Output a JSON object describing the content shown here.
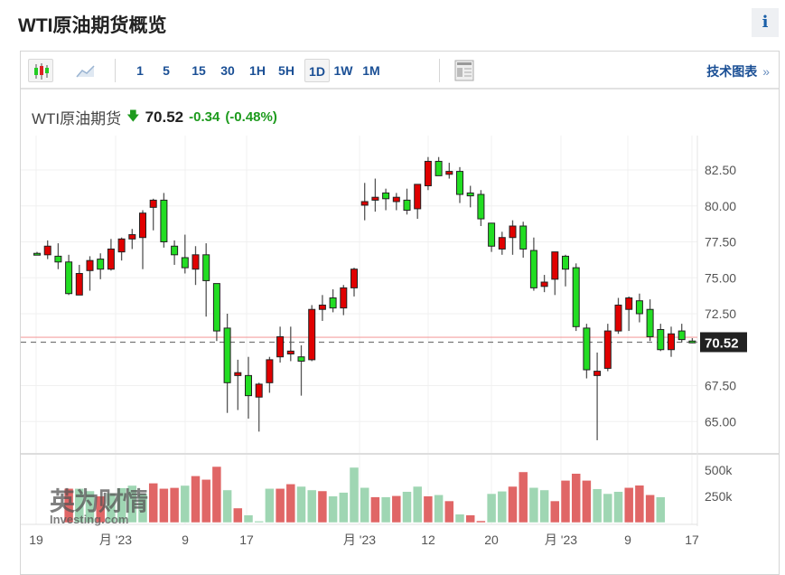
{
  "page_title": "WTI原油期货概览",
  "info_button": "i",
  "toolbar": {
    "chart_types": [
      {
        "icon": "candlestick-icon",
        "active": true
      },
      {
        "icon": "area-chart-icon",
        "active": false
      }
    ],
    "intervals": [
      "1",
      "5",
      "15",
      "30",
      "1H",
      "5H",
      "1D",
      "1W",
      "1M"
    ],
    "active_interval": "1D",
    "layout_icon": "news-layout-icon",
    "tech_chart_label": "技术图表",
    "tech_chart_chevron": "»"
  },
  "quote": {
    "name": "WTI原油期货",
    "direction": "down",
    "price": "70.52",
    "change": "-0.34",
    "change_pct": "(-0.48%)"
  },
  "watermark": {
    "cn": "英为财情",
    "en": "Investing.com"
  },
  "colors": {
    "up": "#e00000",
    "down": "#22dd22",
    "vol_up": "#e06666",
    "vol_down": "#9fd6b3",
    "prev_close_line": "#f4a0a0",
    "last_label_bg": "#222222"
  },
  "chart_data": {
    "type": "candlestick",
    "price_axis": {
      "ticks": [
        "82.50",
        "80.00",
        "77.50",
        "75.00",
        "72.50",
        "67.50",
        "65.00"
      ],
      "ylim": [
        63.5,
        84
      ],
      "last_price_label": "70.52",
      "prev_close": 70.86
    },
    "volume_axis": {
      "ticks": [
        "500k",
        "250k"
      ]
    },
    "x_tick_labels": [
      "19",
      "月 '23",
      "9",
      "17",
      "月 '23",
      "12",
      "20",
      "月 '23",
      "9",
      "17"
    ],
    "ohlc": [
      [
        76.7,
        76.8,
        76.6,
        76.6
      ],
      [
        76.6,
        77.6,
        76.3,
        77.2
      ],
      [
        76.5,
        77.4,
        75.6,
        76.1
      ],
      [
        76.1,
        76.6,
        73.8,
        73.9
      ],
      [
        73.8,
        75.9,
        73.8,
        75.3
      ],
      [
        75.5,
        76.5,
        74.1,
        76.2
      ],
      [
        76.3,
        76.7,
        74.9,
        75.6
      ],
      [
        75.6,
        77.7,
        75.5,
        77.0
      ],
      [
        76.8,
        77.8,
        76.2,
        77.7
      ],
      [
        77.7,
        78.4,
        77.0,
        78.0
      ],
      [
        77.8,
        79.7,
        75.6,
        79.5
      ],
      [
        79.9,
        80.5,
        78.3,
        80.4
      ],
      [
        80.4,
        80.9,
        77.1,
        77.5
      ],
      [
        77.2,
        77.6,
        75.9,
        76.6
      ],
      [
        76.4,
        78.0,
        75.3,
        75.7
      ],
      [
        75.6,
        77.2,
        74.5,
        76.6
      ],
      [
        76.6,
        77.4,
        72.3,
        74.8
      ],
      [
        74.6,
        74.6,
        70.6,
        71.3
      ],
      [
        71.5,
        72.5,
        65.6,
        67.7
      ],
      [
        68.2,
        69.3,
        65.8,
        68.4
      ],
      [
        68.2,
        69.5,
        65.2,
        66.8
      ],
      [
        66.7,
        67.7,
        64.3,
        67.6
      ],
      [
        67.7,
        69.5,
        67.0,
        69.3
      ],
      [
        69.5,
        71.6,
        69.1,
        70.9
      ],
      [
        69.7,
        71.6,
        69.2,
        69.9
      ],
      [
        69.5,
        70.3,
        66.8,
        69.2
      ],
      [
        69.3,
        73.1,
        69.2,
        72.8
      ],
      [
        72.8,
        73.8,
        72.0,
        73.1
      ],
      [
        73.6,
        74.2,
        72.6,
        72.9
      ],
      [
        72.9,
        74.5,
        72.4,
        74.3
      ],
      [
        74.3,
        75.7,
        73.7,
        75.6
      ],
      [
        80.05,
        81.6,
        79.0,
        80.3
      ],
      [
        80.4,
        81.9,
        79.6,
        80.6
      ],
      [
        80.9,
        81.2,
        79.7,
        80.5
      ],
      [
        80.3,
        80.9,
        79.7,
        80.6
      ],
      [
        80.4,
        81.2,
        79.4,
        79.7
      ],
      [
        79.8,
        81.5,
        79.1,
        81.5
      ],
      [
        81.4,
        83.4,
        81.1,
        83.1
      ],
      [
        83.1,
        83.4,
        82.1,
        82.1
      ],
      [
        82.2,
        83.0,
        81.9,
        82.4
      ],
      [
        82.4,
        82.7,
        80.2,
        80.8
      ],
      [
        80.9,
        81.4,
        79.9,
        80.7
      ],
      [
        80.8,
        81.1,
        78.6,
        79.1
      ],
      [
        78.8,
        78.8,
        76.8,
        77.2
      ],
      [
        77.0,
        78.2,
        76.6,
        77.8
      ],
      [
        77.8,
        79.0,
        76.6,
        78.6
      ],
      [
        78.6,
        78.9,
        76.4,
        77.0
      ],
      [
        76.9,
        77.8,
        74.1,
        74.3
      ],
      [
        74.4,
        75.2,
        74.0,
        74.7
      ],
      [
        74.9,
        76.8,
        73.8,
        76.8
      ],
      [
        76.5,
        76.6,
        74.4,
        75.6
      ],
      [
        75.7,
        76.0,
        71.3,
        71.6
      ],
      [
        71.5,
        71.8,
        68.0,
        68.6
      ],
      [
        68.2,
        69.8,
        63.7,
        68.5
      ],
      [
        68.7,
        71.8,
        68.5,
        71.3
      ],
      [
        71.3,
        73.6,
        71.1,
        73.1
      ],
      [
        72.8,
        73.7,
        71.3,
        73.6
      ],
      [
        73.4,
        73.9,
        71.9,
        72.5
      ],
      [
        72.8,
        73.5,
        70.6,
        70.9
      ],
      [
        71.4,
        71.8,
        69.9,
        70.0
      ],
      [
        70.0,
        71.6,
        69.5,
        71.1
      ],
      [
        71.3,
        71.8,
        70.5,
        70.7
      ],
      [
        70.6,
        70.8,
        70.45,
        70.52
      ]
    ],
    "volume_k": [
      null,
      null,
      null,
      324,
      324,
      301,
      252,
      280,
      330,
      353,
      275,
      375,
      324,
      332,
      353,
      444,
      410,
      533,
      310,
      138,
      72,
      14,
      324,
      324,
      367,
      344,
      310,
      301,
      252,
      287,
      525,
      333,
      244,
      244,
      255,
      295,
      344,
      252,
      264,
      206,
      80,
      72,
      17,
      275,
      298,
      344,
      482,
      333,
      310,
      206,
      401,
      467,
      401,
      321,
      275,
      295,
      333,
      355,
      264,
      244,
      null,
      null,
      null
    ],
    "volume_dir": [
      null,
      null,
      null,
      "u",
      "d",
      "d",
      "u",
      "d",
      "d",
      "d",
      "d",
      "u",
      "u",
      "u",
      "d",
      "u",
      "u",
      "u",
      "d",
      "u",
      "d",
      "d",
      "d",
      "u",
      "u",
      "d",
      "d",
      "u",
      "d",
      "d",
      "d",
      "d",
      "u",
      "d",
      "u",
      "d",
      "d",
      "u",
      "d",
      "u",
      "d",
      "u",
      "u",
      "d",
      "d",
      "u",
      "u",
      "d",
      "d",
      "u",
      "u",
      "u",
      "u",
      "d",
      "d",
      "d",
      "u",
      "u",
      "u",
      "d",
      null,
      null,
      null
    ]
  }
}
